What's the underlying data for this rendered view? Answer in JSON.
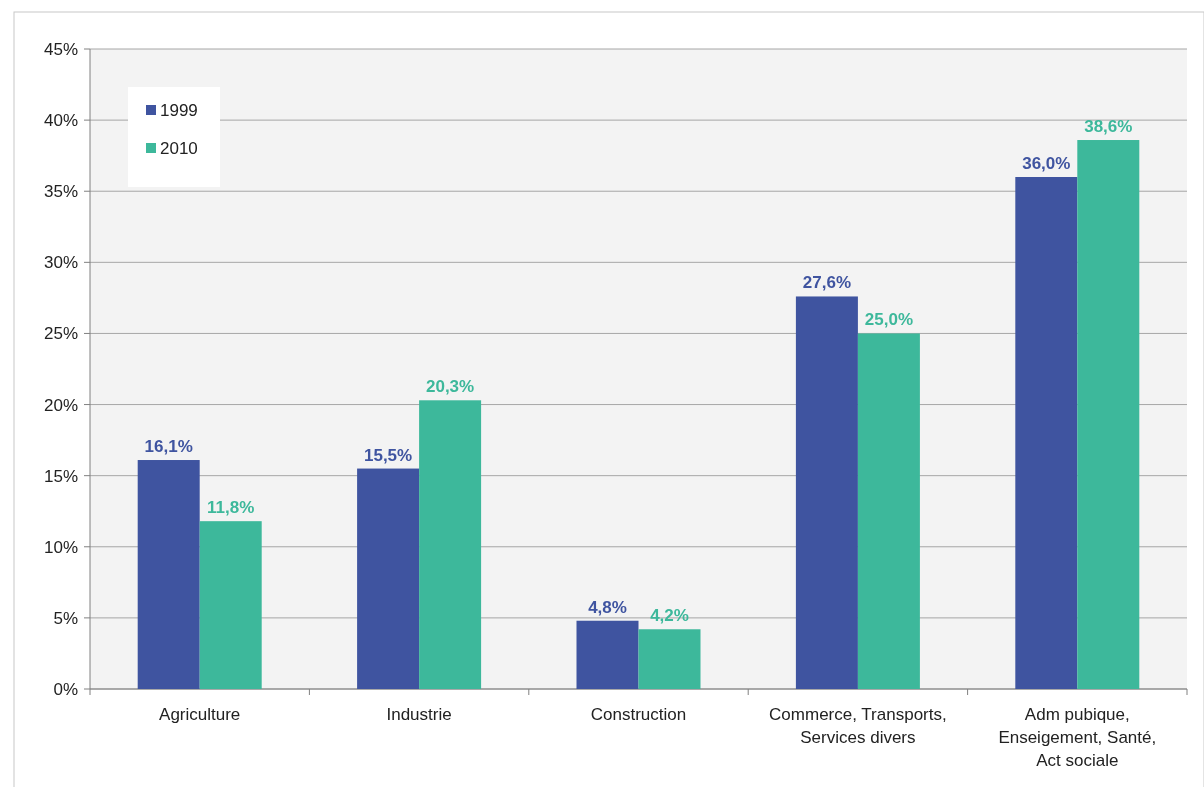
{
  "chart_data": {
    "type": "bar",
    "categories": [
      "Agriculture",
      "Industrie",
      "Construction",
      "Commerce, Transports,\nServices divers",
      "Adm pubique,\nEnseigement, Santé,\nAct sociale"
    ],
    "series": [
      {
        "name": "1999",
        "color": "#3f54a0",
        "values": [
          16.1,
          15.5,
          4.8,
          27.6,
          36.0
        ],
        "value_labels": [
          "16,1%",
          "15,5%",
          "4,8%",
          "27,6%",
          "36,0%"
        ]
      },
      {
        "name": "2010",
        "color": "#3db89b",
        "values": [
          11.8,
          20.3,
          4.2,
          25.0,
          38.6
        ],
        "value_labels": [
          "11,8%",
          "20,3%",
          "4,2%",
          "25,0%",
          "38,6%"
        ]
      }
    ],
    "ylim": [
      0,
      45
    ],
    "yticks": [
      {
        "value": 0,
        "label": "0%"
      },
      {
        "value": 5,
        "label": "5%"
      },
      {
        "value": 10,
        "label": "10%"
      },
      {
        "value": 15,
        "label": "15%"
      },
      {
        "value": 20,
        "label": "20%"
      },
      {
        "value": 25,
        "label": "25%"
      },
      {
        "value": 30,
        "label": "30%"
      },
      {
        "value": 35,
        "label": "35%"
      },
      {
        "value": 40,
        "label": "40%"
      },
      {
        "value": 45,
        "label": "45%"
      }
    ],
    "grid": "y",
    "legend": "top left"
  }
}
